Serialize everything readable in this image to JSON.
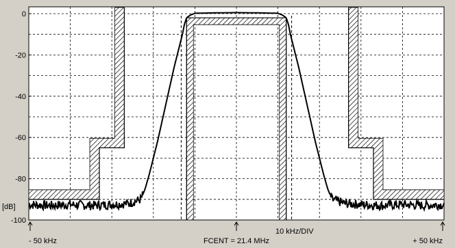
{
  "chart_data": {
    "type": "line",
    "title": "",
    "xlabel": "",
    "ylabel": "[dB]",
    "x_unit": "kHz offset from center",
    "xlim": [
      -50,
      50
    ],
    "ylim": [
      -100,
      4
    ],
    "y_ticks": [
      0,
      -20,
      -40,
      -60,
      -80,
      -100
    ],
    "y_tick_labels": [
      "0",
      "-20",
      "-40",
      "-60",
      "-80",
      "-100"
    ],
    "x_divisions": 10,
    "grid": true,
    "x_annotations": {
      "left": "- 50 kHz",
      "center": "FCENT = 21.4 MHz",
      "right": "+ 50 kHz",
      "scale": "10 kHz/DIV"
    },
    "series": [
      {
        "values_description": "filter response",
        "points": [
          [
            -50,
            -92.5
          ],
          [
            -45,
            -93
          ],
          [
            -40,
            -92.5
          ],
          [
            -35,
            -93
          ],
          [
            -30,
            -92.5
          ],
          [
            -26,
            -92
          ],
          [
            -23,
            -90
          ],
          [
            -22,
            -85
          ],
          [
            -21,
            -78
          ],
          [
            -20,
            -70
          ],
          [
            -19,
            -62
          ],
          [
            -18,
            -53
          ],
          [
            -17,
            -44
          ],
          [
            -16,
            -35
          ],
          [
            -15,
            -26
          ],
          [
            -14,
            -18
          ],
          [
            -13,
            -10
          ],
          [
            -12.5,
            -5
          ],
          [
            -12,
            -2
          ],
          [
            -11,
            -0.6
          ],
          [
            -10,
            0.2
          ],
          [
            -5,
            0.4
          ],
          [
            0,
            0.5
          ],
          [
            5,
            0.4
          ],
          [
            10,
            0.2
          ],
          [
            11,
            -0.6
          ],
          [
            12,
            -2
          ],
          [
            12.5,
            -5
          ],
          [
            13,
            -10
          ],
          [
            14,
            -18
          ],
          [
            15,
            -26
          ],
          [
            16,
            -35
          ],
          [
            17,
            -44
          ],
          [
            18,
            -53
          ],
          [
            19,
            -62
          ],
          [
            20,
            -70
          ],
          [
            21,
            -78
          ],
          [
            22,
            -85
          ],
          [
            23,
            -90
          ],
          [
            26,
            -92
          ],
          [
            30,
            -92.5
          ],
          [
            35,
            -93
          ],
          [
            40,
            -92.5
          ],
          [
            45,
            -93
          ],
          [
            50,
            -92.5
          ]
        ]
      }
    ],
    "masks": {
      "upper_left": [
        [
          -50,
          -90
        ],
        [
          -33,
          -90
        ],
        [
          -33,
          -65
        ],
        [
          -27,
          -65
        ],
        [
          -27,
          4
        ]
      ],
      "upper_right": [
        [
          27,
          4
        ],
        [
          27,
          -65
        ],
        [
          33,
          -65
        ],
        [
          33,
          -90
        ],
        [
          50,
          -90
        ]
      ],
      "inner_passband": [
        [
          -12,
          -100
        ],
        [
          -12,
          -2
        ],
        [
          12,
          -2
        ],
        [
          12,
          -100
        ]
      ],
      "inner_dashed_left": -13.3,
      "inner_dashed_right": 13.3
    }
  }
}
